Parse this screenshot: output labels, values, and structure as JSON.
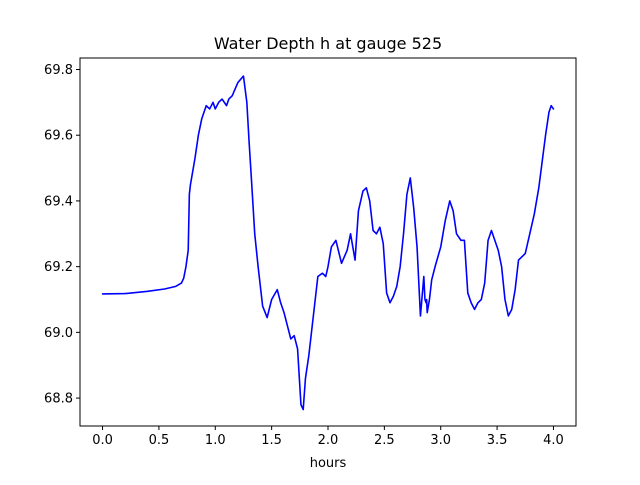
{
  "chart_data": {
    "type": "line",
    "title": "Water Depth h at gauge 525",
    "xlabel": "hours",
    "ylabel": "",
    "xlim": [
      -0.2,
      4.2
    ],
    "ylim": [
      68.715,
      69.835
    ],
    "xticks": [
      0.0,
      0.5,
      1.0,
      1.5,
      2.0,
      2.5,
      3.0,
      3.5,
      4.0
    ],
    "xtick_labels": [
      "0.0",
      "0.5",
      "1.0",
      "1.5",
      "2.0",
      "2.5",
      "3.0",
      "3.5",
      "4.0"
    ],
    "yticks": [
      68.8,
      69.0,
      69.2,
      69.4,
      69.6,
      69.8
    ],
    "ytick_labels": [
      "68.8",
      "69.0",
      "69.2",
      "69.4",
      "69.6",
      "69.8"
    ],
    "grid": false,
    "series": [
      {
        "color": "#0000ff",
        "x": [
          0.0,
          0.2,
          0.4,
          0.55,
          0.65,
          0.7,
          0.72,
          0.74,
          0.76,
          0.77,
          0.78,
          0.8,
          0.82,
          0.85,
          0.88,
          0.92,
          0.95,
          0.98,
          1.0,
          1.03,
          1.06,
          1.1,
          1.12,
          1.15,
          1.2,
          1.25,
          1.28,
          1.3,
          1.32,
          1.35,
          1.38,
          1.42,
          1.46,
          1.5,
          1.55,
          1.58,
          1.61,
          1.64,
          1.67,
          1.7,
          1.73,
          1.76,
          1.78,
          1.8,
          1.83,
          1.87,
          1.91,
          1.95,
          1.98,
          2.0,
          2.03,
          2.07,
          2.12,
          2.17,
          2.2,
          2.24,
          2.27,
          2.31,
          2.34,
          2.37,
          2.4,
          2.43,
          2.46,
          2.49,
          2.52,
          2.55,
          2.58,
          2.61,
          2.64,
          2.67,
          2.7,
          2.73,
          2.76,
          2.79,
          2.82,
          2.85,
          2.86,
          2.87,
          2.875,
          2.88,
          2.885,
          2.89,
          2.9,
          2.92,
          2.95,
          3.0,
          3.04,
          3.08,
          3.11,
          3.14,
          3.18,
          3.21,
          3.24,
          3.27,
          3.3,
          3.33,
          3.36,
          3.39,
          3.42,
          3.45,
          3.48,
          3.51,
          3.54,
          3.57,
          3.6,
          3.63,
          3.66,
          3.69,
          3.72,
          3.75,
          3.79,
          3.83,
          3.87,
          3.9,
          3.93,
          3.96,
          3.98,
          4.0
        ],
        "y": [
          69.117,
          69.118,
          69.125,
          69.132,
          69.14,
          69.15,
          69.165,
          69.2,
          69.25,
          69.42,
          69.45,
          69.49,
          69.53,
          69.6,
          69.65,
          69.69,
          69.68,
          69.7,
          69.68,
          69.7,
          69.71,
          69.69,
          69.71,
          69.72,
          69.76,
          69.78,
          69.7,
          69.58,
          69.47,
          69.3,
          69.2,
          69.08,
          69.045,
          69.1,
          69.13,
          69.09,
          69.06,
          69.02,
          68.98,
          68.99,
          68.95,
          68.78,
          68.765,
          68.86,
          68.93,
          69.05,
          69.17,
          69.18,
          69.17,
          69.2,
          69.26,
          69.28,
          69.21,
          69.25,
          69.3,
          69.22,
          69.37,
          69.43,
          69.44,
          69.4,
          69.31,
          69.3,
          69.32,
          69.27,
          69.12,
          69.09,
          69.11,
          69.14,
          69.2,
          69.3,
          69.42,
          69.47,
          69.38,
          69.26,
          69.05,
          69.17,
          69.1,
          69.09,
          69.1,
          69.06,
          69.07,
          69.08,
          69.1,
          69.16,
          69.2,
          69.26,
          69.34,
          69.4,
          69.37,
          69.3,
          69.28,
          69.28,
          69.12,
          69.09,
          69.07,
          69.09,
          69.1,
          69.15,
          69.28,
          69.31,
          69.28,
          69.25,
          69.2,
          69.1,
          69.05,
          69.07,
          69.13,
          69.22,
          69.23,
          69.24,
          69.3,
          69.36,
          69.44,
          69.52,
          69.6,
          69.67,
          69.69,
          69.68
        ]
      }
    ]
  }
}
